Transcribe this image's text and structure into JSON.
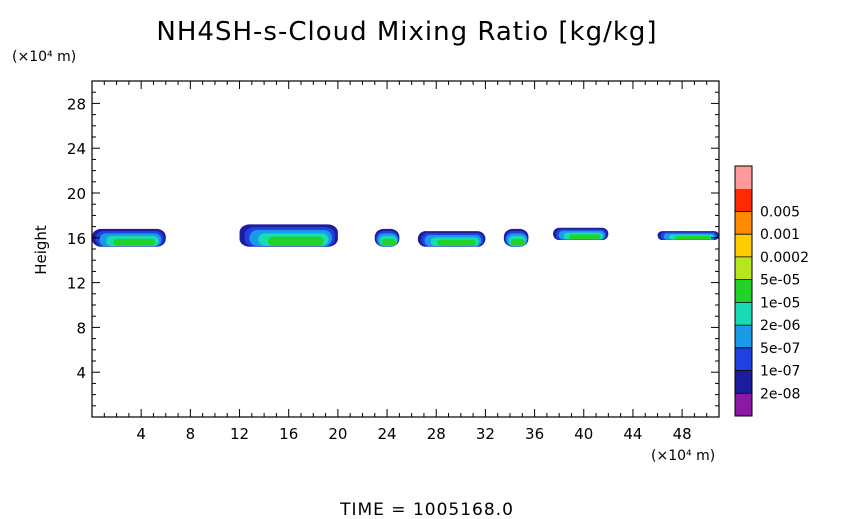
{
  "chart_data": {
    "type": "heatmap",
    "title": "NH4SH-s-Cloud Mixing Ratio [kg/kg]",
    "ylabel": "Height",
    "x_unit": "(×10⁴ m)",
    "y_unit": "(×10⁴ m)",
    "footer": "TIME = 1005168.0",
    "xlim": [
      0,
      51
    ],
    "ylim": [
      0,
      30
    ],
    "x_ticks": [
      4,
      8,
      12,
      16,
      20,
      24,
      28,
      32,
      36,
      40,
      44,
      48
    ],
    "y_ticks": [
      4,
      8,
      12,
      16,
      20,
      24,
      28
    ],
    "colorbar": {
      "levels": [
        "2e-08",
        "1e-07",
        "5e-07",
        "2e-06",
        "1e-05",
        "5e-05",
        "0.0002",
        "0.001",
        "0.005"
      ],
      "colors": [
        "#8a1aa6",
        "#1c1c9c",
        "#2040e0",
        "#1a9ae8",
        "#18dcb4",
        "#22d22a",
        "#b8e61c",
        "#ffcc00",
        "#ff8c00",
        "#ff2a00",
        "#ff9a9a"
      ]
    },
    "cloud_features": [
      {
        "x_start": 0.0,
        "x_end": 6.0,
        "z_bottom": 15.2,
        "z_top": 16.8
      },
      {
        "x_start": 12.0,
        "x_end": 20.0,
        "z_bottom": 15.2,
        "z_top": 17.2
      },
      {
        "x_start": 23.0,
        "x_end": 25.0,
        "z_bottom": 15.2,
        "z_top": 16.8
      },
      {
        "x_start": 26.5,
        "x_end": 32.0,
        "z_bottom": 15.2,
        "z_top": 16.6
      },
      {
        "x_start": 33.5,
        "x_end": 35.5,
        "z_bottom": 15.2,
        "z_top": 16.8
      },
      {
        "x_start": 37.5,
        "x_end": 42.0,
        "z_bottom": 15.8,
        "z_top": 16.9
      },
      {
        "x_start": 46.0,
        "x_end": 51.0,
        "z_bottom": 15.8,
        "z_top": 16.6
      }
    ]
  }
}
